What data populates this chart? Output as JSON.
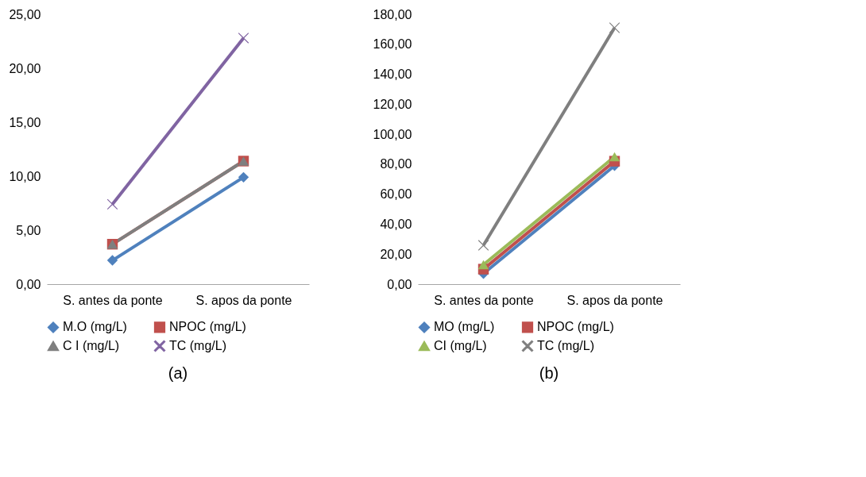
{
  "chart_data": [
    {
      "type": "line",
      "title": "(a)",
      "categories": [
        "S. antes da ponte",
        "S. apos da ponte"
      ],
      "ylim": [
        0,
        25
      ],
      "yticks": [
        {
          "value": 0,
          "label": "0,00"
        },
        {
          "value": 5,
          "label": "5,00"
        },
        {
          "value": 10,
          "label": "10,00"
        },
        {
          "value": 15,
          "label": "15,00"
        },
        {
          "value": 20,
          "label": "20,00"
        },
        {
          "value": 25,
          "label": "25,00"
        }
      ],
      "grid": false,
      "legend": "bottom",
      "series": [
        {
          "name": "M.O (mg/L)",
          "color": "#4f81bd",
          "marker": "diamond",
          "values": [
            2.2,
            9.9
          ]
        },
        {
          "name": "NPOC  (mg/L)",
          "color": "#c0504d",
          "marker": "square",
          "values": [
            3.7,
            11.4
          ]
        },
        {
          "name": "C I (mg/L)",
          "color": "#7f7f7f",
          "marker": "triangle",
          "values": [
            3.7,
            11.4
          ]
        },
        {
          "name": "TC (mg/L)",
          "color": "#8064a2",
          "marker": "cross",
          "values": [
            7.4,
            22.8
          ]
        }
      ]
    },
    {
      "type": "line",
      "title": "(b)",
      "categories": [
        "S. antes da ponte",
        "S. apos da ponte"
      ],
      "ylim": [
        0,
        180
      ],
      "yticks": [
        {
          "value": 0,
          "label": "0,00"
        },
        {
          "value": 20,
          "label": "20,00"
        },
        {
          "value": 40,
          "label": "40,00"
        },
        {
          "value": 60,
          "label": "60,00"
        },
        {
          "value": 80,
          "label": "80,00"
        },
        {
          "value": 100,
          "label": "100,00"
        },
        {
          "value": 120,
          "label": "120,00"
        },
        {
          "value": 140,
          "label": "140,00"
        },
        {
          "value": 160,
          "label": "160,00"
        },
        {
          "value": 180,
          "label": "180,00"
        }
      ],
      "grid": false,
      "legend": "bottom",
      "series": [
        {
          "name": "MO (mg/L)",
          "color": "#4f81bd",
          "marker": "diamond",
          "values": [
            7,
            79
          ]
        },
        {
          "name": "NPOC  (mg/L)",
          "color": "#c0504d",
          "marker": "square",
          "values": [
            10,
            82
          ]
        },
        {
          "name": "CI (mg/L)",
          "color": "#9bbb59",
          "marker": "triangle",
          "values": [
            13,
            85
          ]
        },
        {
          "name": "TC (mg/L)",
          "color": "#7f7f7f",
          "marker": "cross",
          "values": [
            25.9,
            171
          ]
        }
      ]
    }
  ]
}
